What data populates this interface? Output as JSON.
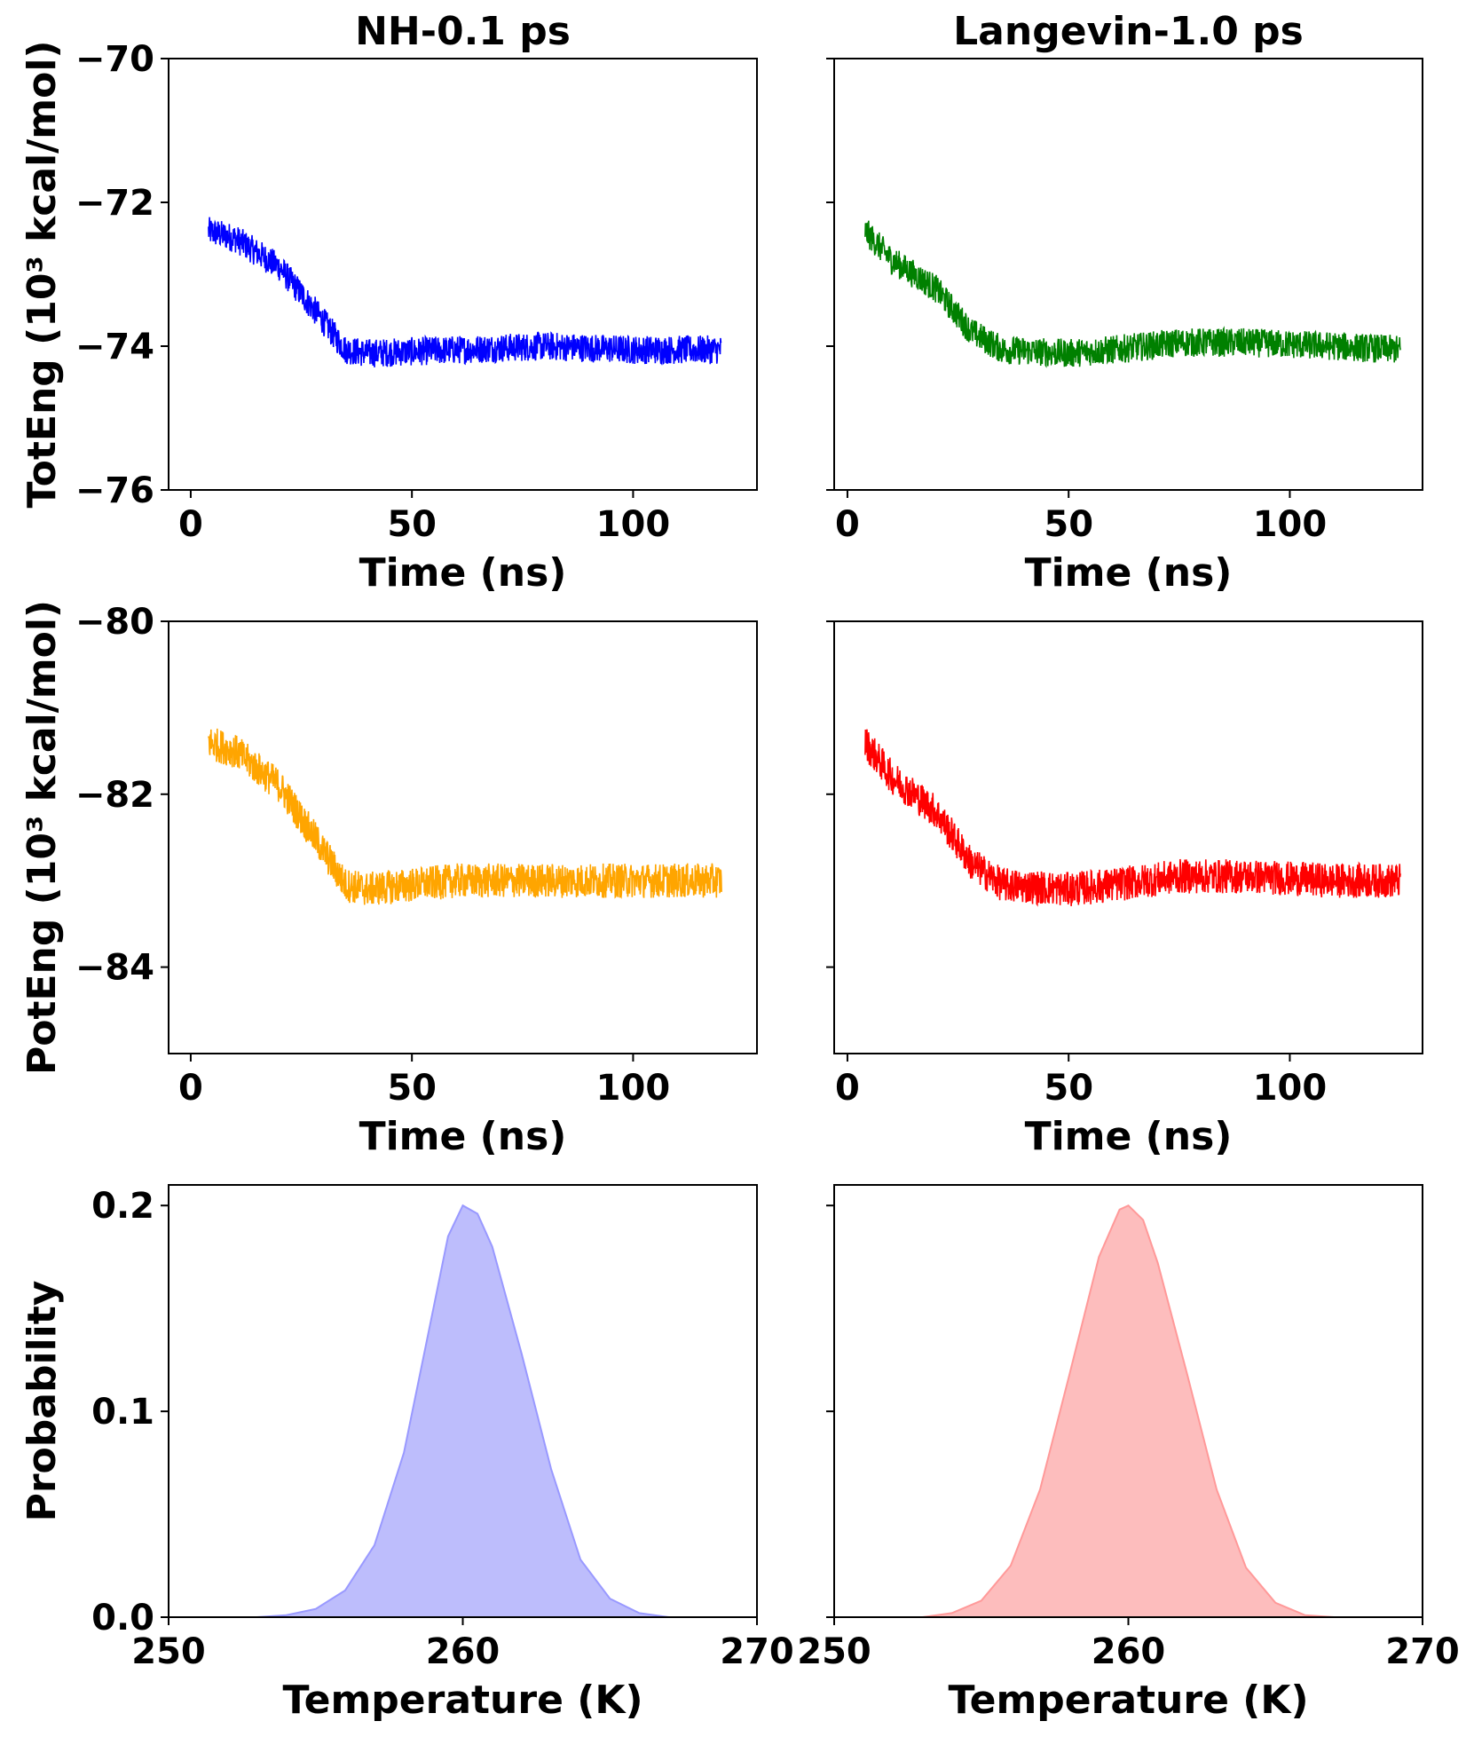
{
  "chart_data": [
    {
      "id": "tl",
      "type": "line",
      "title": "NH-0.1 ps",
      "xlabel": "Time (ns)",
      "ylabel": "TotEng (10³ kcal/mol)",
      "xlim": [
        -5,
        128
      ],
      "ylim": [
        -76,
        -70
      ],
      "xticks": [
        0,
        50,
        100
      ],
      "yticks": [
        -70,
        -72,
        -74,
        -76
      ],
      "color": "#0000ff",
      "trend": [
        [
          4,
          -72.4
        ],
        [
          10,
          -72.5
        ],
        [
          20,
          -72.9
        ],
        [
          28,
          -73.5
        ],
        [
          35,
          -74.05
        ],
        [
          40,
          -74.1
        ],
        [
          60,
          -74.05
        ],
        [
          80,
          -74.0
        ],
        [
          100,
          -74.05
        ],
        [
          120,
          -74.05
        ]
      ],
      "noise": 0.2,
      "x_range": [
        4,
        120
      ]
    },
    {
      "id": "tr",
      "type": "line",
      "title": "Langevin-1.0 ps",
      "xlabel": "Time (ns)",
      "ylabel": "",
      "xlim": [
        -3,
        130
      ],
      "ylim": [
        -76,
        -70
      ],
      "xticks": [
        0,
        50,
        100
      ],
      "yticks": [
        -70,
        -72,
        -74,
        -76
      ],
      "color": "#008000",
      "trend": [
        [
          4,
          -72.4
        ],
        [
          10,
          -72.8
        ],
        [
          20,
          -73.2
        ],
        [
          28,
          -73.8
        ],
        [
          35,
          -74.05
        ],
        [
          50,
          -74.1
        ],
        [
          60,
          -74.05
        ],
        [
          75,
          -73.95
        ],
        [
          90,
          -73.95
        ],
        [
          110,
          -74.0
        ],
        [
          125,
          -74.05
        ]
      ],
      "noise": 0.2,
      "x_range": [
        4,
        125
      ]
    },
    {
      "id": "ml",
      "type": "line",
      "title": "",
      "xlabel": "Time (ns)",
      "ylabel": "PotEng (10³ kcal/mol)",
      "xlim": [
        -5,
        128
      ],
      "ylim": [
        -85,
        -80
      ],
      "xticks": [
        0,
        50,
        100
      ],
      "yticks": [
        -80,
        -82,
        -84
      ],
      "ytick_labels": [
        "−80",
        "−82",
        "−84"
      ],
      "color": "#ffa500",
      "trend": [
        [
          4,
          -81.4
        ],
        [
          10,
          -81.5
        ],
        [
          20,
          -81.9
        ],
        [
          28,
          -82.5
        ],
        [
          35,
          -83.05
        ],
        [
          40,
          -83.1
        ],
        [
          60,
          -83.0
        ],
        [
          80,
          -83.0
        ],
        [
          100,
          -83.0
        ],
        [
          120,
          -83.0
        ]
      ],
      "noise": 0.2,
      "x_range": [
        4,
        120
      ]
    },
    {
      "id": "mr",
      "type": "line",
      "title": "",
      "xlabel": "Time (ns)",
      "ylabel": "",
      "xlim": [
        -3,
        130
      ],
      "ylim": [
        -85,
        -80
      ],
      "xticks": [
        0,
        50,
        100
      ],
      "yticks": [
        -80,
        -82,
        -84
      ],
      "color": "#ff0000",
      "trend": [
        [
          4,
          -81.4
        ],
        [
          10,
          -81.8
        ],
        [
          20,
          -82.2
        ],
        [
          28,
          -82.8
        ],
        [
          35,
          -83.05
        ],
        [
          50,
          -83.1
        ],
        [
          60,
          -83.05
        ],
        [
          75,
          -82.95
        ],
        [
          90,
          -82.95
        ],
        [
          110,
          -83.0
        ],
        [
          125,
          -83.0
        ]
      ],
      "noise": 0.2,
      "x_range": [
        4,
        125
      ]
    },
    {
      "id": "bl",
      "type": "area",
      "title": "",
      "xlabel": "Temperature (K)",
      "ylabel": "Probability",
      "xlim": [
        250,
        270
      ],
      "ylim": [
        0,
        0.21
      ],
      "xticks": [
        250,
        260,
        270
      ],
      "yticks": [
        0.0,
        0.1,
        0.2
      ],
      "color": "#9999ff",
      "fill": "#bdbdfc",
      "points": [
        [
          253,
          0.0
        ],
        [
          254,
          0.001
        ],
        [
          255,
          0.004
        ],
        [
          256,
          0.013
        ],
        [
          257,
          0.035
        ],
        [
          258,
          0.08
        ],
        [
          259,
          0.15
        ],
        [
          259.5,
          0.185
        ],
        [
          260,
          0.2
        ],
        [
          260.5,
          0.196
        ],
        [
          261,
          0.18
        ],
        [
          262,
          0.128
        ],
        [
          263,
          0.072
        ],
        [
          264,
          0.028
        ],
        [
          265,
          0.009
        ],
        [
          266,
          0.002
        ],
        [
          267,
          0.0
        ]
      ]
    },
    {
      "id": "br",
      "type": "area",
      "title": "",
      "xlabel": "Temperature (K)",
      "ylabel": "",
      "xlim": [
        250,
        270
      ],
      "ylim": [
        0,
        0.21
      ],
      "xticks": [
        250,
        260,
        270
      ],
      "yticks": [
        0.0,
        0.1,
        0.2
      ],
      "color": "#ff9999",
      "fill": "#fdbdbd",
      "points": [
        [
          253,
          0.0
        ],
        [
          254,
          0.002
        ],
        [
          255,
          0.008
        ],
        [
          256,
          0.025
        ],
        [
          257,
          0.062
        ],
        [
          258,
          0.118
        ],
        [
          259,
          0.175
        ],
        [
          259.7,
          0.198
        ],
        [
          260,
          0.2
        ],
        [
          260.5,
          0.193
        ],
        [
          261,
          0.172
        ],
        [
          262,
          0.118
        ],
        [
          263,
          0.062
        ],
        [
          264,
          0.024
        ],
        [
          265,
          0.007
        ],
        [
          266,
          0.001
        ],
        [
          267,
          0.0
        ]
      ]
    }
  ]
}
